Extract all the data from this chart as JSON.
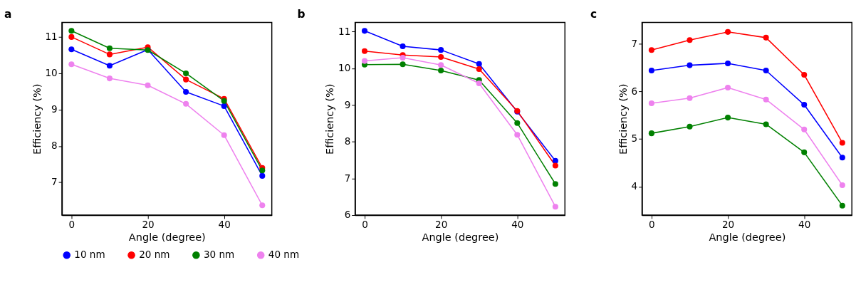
{
  "chart_data": [
    {
      "type": "line",
      "title": "a",
      "xlabel": "Angle (degree)",
      "ylabel": "Efficiency (%)",
      "x": [
        0,
        10,
        20,
        30,
        40,
        50
      ],
      "xlim": [
        -2.5,
        52.5
      ],
      "xticks": [
        0,
        20,
        40
      ],
      "ylim": [
        6.1,
        11.4
      ],
      "yticks": [
        7,
        8,
        9,
        10,
        11
      ],
      "marker": "circle",
      "line_style": "solid",
      "grid": false,
      "legend": "bottom",
      "series": [
        {
          "name": "10 nm",
          "color": "#0000ff",
          "values": [
            10.66,
            10.21,
            10.65,
            9.49,
            9.1,
            7.18
          ]
        },
        {
          "name": "20 nm",
          "color": "#ff0000",
          "values": [
            11.0,
            10.52,
            10.72,
            9.83,
            9.3,
            7.4
          ]
        },
        {
          "name": "30 nm",
          "color": "#008000",
          "values": [
            11.17,
            10.69,
            10.64,
            10.0,
            9.24,
            7.33
          ]
        },
        {
          "name": "40 nm",
          "color": "#ee82ee",
          "values": [
            10.25,
            9.86,
            9.67,
            9.16,
            8.3,
            6.37
          ]
        }
      ]
    },
    {
      "type": "line",
      "title": "b",
      "xlabel": "Angle (degree)",
      "ylabel": "Efficiency (%)",
      "x": [
        0,
        10,
        20,
        30,
        40,
        50
      ],
      "xlim": [
        -2.5,
        52.5
      ],
      "xticks": [
        0,
        20,
        40
      ],
      "ylim": [
        6,
        11.25
      ],
      "yticks": [
        6,
        7,
        8,
        9,
        10,
        11
      ],
      "marker": "circle",
      "line_style": "solid",
      "grid": false,
      "legend": "bottom",
      "series": [
        {
          "name": "10 nm",
          "color": "#0000ff",
          "values": [
            11.02,
            10.6,
            10.5,
            10.12,
            8.82,
            7.48
          ]
        },
        {
          "name": "20 nm",
          "color": "#ff0000",
          "values": [
            10.47,
            10.36,
            10.31,
            9.98,
            8.84,
            7.35
          ]
        },
        {
          "name": "30 nm",
          "color": "#008000",
          "values": [
            10.1,
            10.11,
            9.94,
            9.68,
            8.51,
            6.85
          ]
        },
        {
          "name": "40 nm",
          "color": "#ee82ee",
          "values": [
            10.2,
            10.29,
            10.09,
            9.59,
            8.19,
            6.23
          ]
        }
      ]
    },
    {
      "type": "line",
      "title": "c",
      "xlabel": "Angle (degree)",
      "ylabel": "Efficiency (%)",
      "x": [
        0,
        10,
        20,
        30,
        40,
        50
      ],
      "xlim": [
        -2.5,
        52.5
      ],
      "xticks": [
        0,
        20,
        40
      ],
      "ylim": [
        3.4,
        7.45
      ],
      "yticks": [
        4,
        5,
        6,
        7
      ],
      "marker": "circle",
      "line_style": "solid",
      "grid": false,
      "legend": "bottom",
      "series": [
        {
          "name": "10 nm",
          "color": "#0000ff",
          "values": [
            6.44,
            6.55,
            6.59,
            6.44,
            5.72,
            4.61
          ]
        },
        {
          "name": "20 nm",
          "color": "#ff0000",
          "values": [
            6.87,
            7.08,
            7.25,
            7.13,
            6.35,
            4.92
          ]
        },
        {
          "name": "30 nm",
          "color": "#008000",
          "values": [
            5.12,
            5.26,
            5.45,
            5.31,
            4.72,
            3.6
          ]
        },
        {
          "name": "40 nm",
          "color": "#ee82ee",
          "values": [
            5.75,
            5.86,
            6.08,
            5.83,
            5.2,
            4.03
          ]
        }
      ]
    }
  ]
}
